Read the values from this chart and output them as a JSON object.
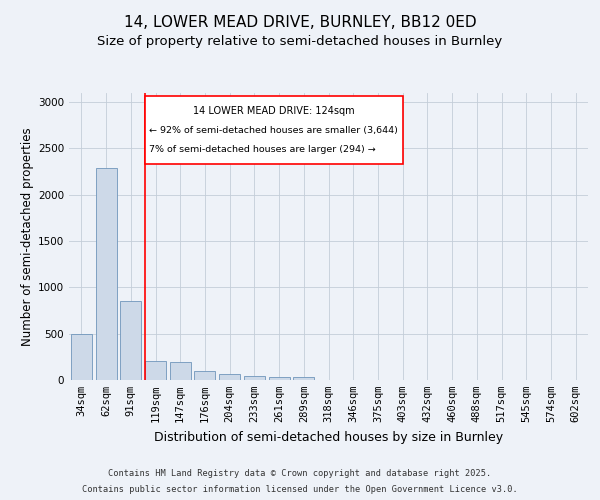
{
  "title": "14, LOWER MEAD DRIVE, BURNLEY, BB12 0ED",
  "subtitle": "Size of property relative to semi-detached houses in Burnley",
  "xlabel": "Distribution of semi-detached houses by size in Burnley",
  "ylabel": "Number of semi-detached properties",
  "categories": [
    "34sqm",
    "62sqm",
    "91sqm",
    "119sqm",
    "147sqm",
    "176sqm",
    "204sqm",
    "233sqm",
    "261sqm",
    "289sqm",
    "318sqm",
    "346sqm",
    "375sqm",
    "403sqm",
    "432sqm",
    "460sqm",
    "488sqm",
    "517sqm",
    "545sqm",
    "574sqm",
    "602sqm"
  ],
  "values": [
    500,
    2290,
    850,
    200,
    195,
    100,
    60,
    48,
    30,
    28,
    5,
    5,
    0,
    0,
    0,
    0,
    0,
    0,
    0,
    0,
    0
  ],
  "bar_color": "#cdd9e8",
  "bar_edge_color": "#7096bb",
  "redline_index": 3,
  "redline_label": "14 LOWER MEAD DRIVE: 124sqm",
  "annotation_line1": "← 92% of semi-detached houses are smaller (3,644)",
  "annotation_line2": "7% of semi-detached houses are larger (294) →",
  "ylim": [
    0,
    3100
  ],
  "yticks": [
    0,
    500,
    1000,
    1500,
    2000,
    2500,
    3000
  ],
  "background_color": "#eef2f8",
  "plot_bg_color": "#eef2f8",
  "footer_line1": "Contains HM Land Registry data © Crown copyright and database right 2025.",
  "footer_line2": "Contains public sector information licensed under the Open Government Licence v3.0.",
  "title_fontsize": 11,
  "subtitle_fontsize": 9.5,
  "axis_label_fontsize": 8.5,
  "tick_fontsize": 7.5
}
